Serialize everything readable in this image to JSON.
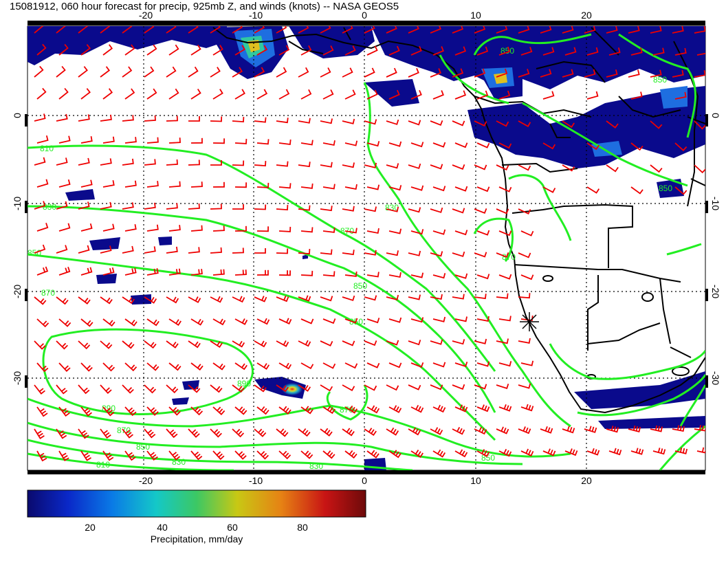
{
  "title": "15081912, 060 hour forecast for precip, 925mb Z, and winds (knots) -- NASA GEOS5",
  "map": {
    "lon_range": [
      -30,
      30
    ],
    "lat_range": [
      -40,
      10
    ],
    "lon_ticks": [
      "-20",
      "-10",
      "0",
      "10",
      "20"
    ],
    "lat_ticks": [
      "0",
      "-10",
      "-20",
      "-30"
    ],
    "grid": "dotted",
    "contour_labels": [
      "810",
      "830",
      "850",
      "870",
      "890",
      "870",
      "850",
      "830",
      "810",
      "850",
      "870",
      "850",
      "830",
      "850",
      "870",
      "890",
      "870",
      "850",
      "830",
      "850",
      "850"
    ],
    "colors": {
      "precip_low": "#0a0a8c",
      "precip_mid": "#00c8c8",
      "precip_high": "#cc0000",
      "contours": "#22ee22",
      "wind_barbs": "#ee0000",
      "coastlines": "#000000"
    },
    "marker": "star"
  },
  "colorbar": {
    "ticks": [
      "20",
      "40",
      "60",
      "80"
    ],
    "label": "Precipitation, mm/day",
    "range": [
      0,
      100
    ]
  }
}
